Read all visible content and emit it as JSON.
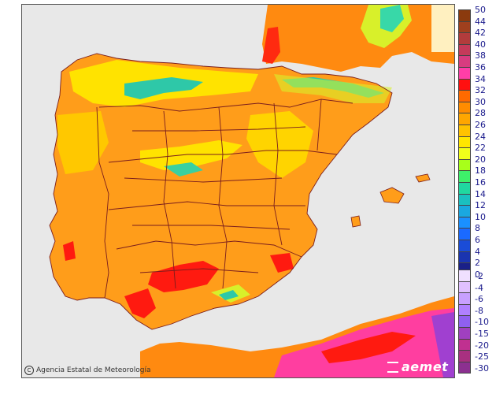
{
  "map": {
    "credit_text": "Agencia Estatal de Meteorología",
    "brand_text": "aemet",
    "colors": {
      "sea": "#e8e8e8",
      "land_base": "#ff9d1a",
      "border_line": "#7a1d1d",
      "hot": "#ff1a1a",
      "very_hot": "#ff3fa0",
      "cool": "#ffe000",
      "mountain": "#b8f000",
      "cold": "#2ec8a8"
    }
  },
  "legend": {
    "positive": [
      {
        "label": "50",
        "color": "#8b3a0e"
      },
      {
        "label": "44",
        "color": "#a0401e"
      },
      {
        "label": "42",
        "color": "#b23c3c"
      },
      {
        "label": "40",
        "color": "#c53a5a"
      },
      {
        "label": "38",
        "color": "#d83c80"
      },
      {
        "label": "36",
        "color": "#ff3ea8"
      },
      {
        "label": "34",
        "color": "#ff1010"
      },
      {
        "label": "32",
        "color": "#ff6a00"
      },
      {
        "label": "30",
        "color": "#ff8c00"
      },
      {
        "label": "28",
        "color": "#ffa600"
      },
      {
        "label": "26",
        "color": "#ffc200"
      },
      {
        "label": "24",
        "color": "#ffe600"
      },
      {
        "label": "22",
        "color": "#f0ff1a"
      },
      {
        "label": "20",
        "color": "#a8ff1a"
      },
      {
        "label": "18",
        "color": "#3ef06a"
      },
      {
        "label": "16",
        "color": "#20d8a0"
      },
      {
        "label": "14",
        "color": "#1ac0c0"
      },
      {
        "label": "12",
        "color": "#1aa8e0"
      },
      {
        "label": "10",
        "color": "#1a90ff"
      },
      {
        "label": "8",
        "color": "#1a6aff"
      },
      {
        "label": "6",
        "color": "#1a4cd8"
      },
      {
        "label": "4",
        "color": "#1a34b0"
      },
      {
        "label": "2",
        "color": "#1a2088"
      },
      {
        "label": "0",
        "color": "#101060"
      }
    ],
    "negative": [
      {
        "label": "-2",
        "color": "#f0e0ff"
      },
      {
        "label": "-4",
        "color": "#e0c0ff"
      },
      {
        "label": "-6",
        "color": "#c8a0ff"
      },
      {
        "label": "-8",
        "color": "#b080ff"
      },
      {
        "label": "-10",
        "color": "#9060f0"
      },
      {
        "label": "-15",
        "color": "#a040c0"
      },
      {
        "label": "-20",
        "color": "#c03090"
      },
      {
        "label": "-25",
        "color": "#a83080"
      },
      {
        "label": "-30",
        "color": "#8c3090"
      }
    ]
  }
}
